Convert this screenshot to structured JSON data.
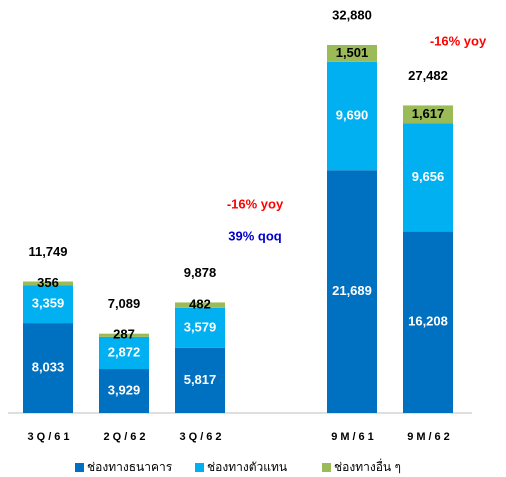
{
  "chart_data": {
    "type": "stacked_bar",
    "categories": [
      "3Q/61",
      "2Q/62",
      "3Q/62",
      null,
      "9M/61",
      "9M/62"
    ],
    "series": [
      {
        "name": "ช่องทางธนาคาร",
        "color": "#0070c0",
        "label_color": "#ffffff",
        "values": [
          8033,
          3929,
          5817,
          null,
          21689,
          16208
        ],
        "value_labels": [
          "8,033",
          "3,929",
          "5,817",
          null,
          "21,689",
          "16,208"
        ]
      },
      {
        "name": "ช่องทางตัวแทน",
        "color": "#00b0f0",
        "label_color": "#ffffff",
        "values": [
          3359,
          2872,
          3579,
          null,
          9690,
          9656
        ],
        "value_labels": [
          "3,359",
          "2,872",
          "3,579",
          null,
          "9,690",
          "9,656"
        ]
      },
      {
        "name": "ช่องทางอื่น ๆ",
        "color": "#9bbb59",
        "label_color": "#000000",
        "values": [
          356,
          287,
          482,
          null,
          1501,
          1617
        ],
        "value_labels": [
          "356",
          "287",
          "482",
          null,
          "1,501",
          "1,617"
        ]
      }
    ],
    "totals": [
      11749,
      7089,
      9878,
      null,
      32880,
      27482
    ],
    "total_labels": [
      "11,749",
      "7,089",
      "9,878",
      null,
      "32,880",
      "27,482"
    ],
    "annotations": [
      "-16% yoy",
      "39% qoq",
      "-16% yoy"
    ],
    "legend": "bottom"
  }
}
